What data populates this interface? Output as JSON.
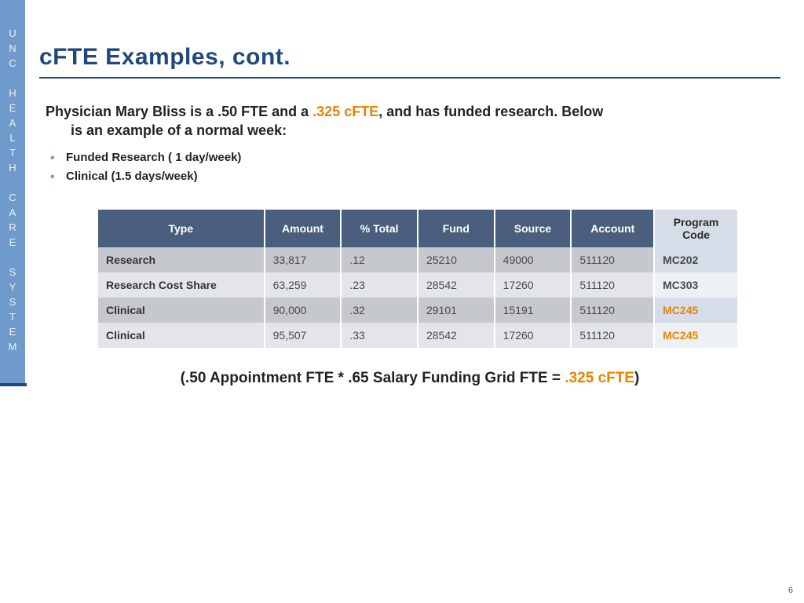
{
  "sidebar": {
    "text": "UNC HEALTH CARE SYSTEM"
  },
  "title": "cFTE Examples, cont.",
  "intro": {
    "pre": "Physician Mary Bliss is a .50 FTE and a ",
    "highlight": ".325 cFTE",
    "post": ", and has funded research.  Below",
    "line2": "is an example of a normal week:"
  },
  "bullets": [
    "Funded Research ( 1 day/week)",
    "Clinical (1.5 days/week)"
  ],
  "table": {
    "columns": [
      "Type",
      "Amount",
      "% Total",
      "Fund",
      "Source",
      "Account",
      "Program Code"
    ],
    "col_widths": [
      "26%",
      "12%",
      "12%",
      "12%",
      "12%",
      "13%",
      "13%"
    ],
    "header_bg_main": "#4a5f7d",
    "header_bg_last": "#d6dde8",
    "rowA_bg": "#c5c8cc",
    "rowA_last_bg": "#d6dde8",
    "rowB_bg": "#e3e5e8",
    "rowB_last_bg": "#edf0f5",
    "highlight_color": "#e98300",
    "rows": [
      {
        "cells": [
          "Research",
          "33,817",
          ".12",
          "25210",
          "49000",
          "511120",
          "MC202"
        ],
        "program_highlight": false,
        "stripe": "A"
      },
      {
        "cells": [
          "Research Cost Share",
          "63,259",
          ".23",
          "28542",
          "17260",
          "511120",
          "MC303"
        ],
        "program_highlight": false,
        "stripe": "B"
      },
      {
        "cells": [
          "Clinical",
          "90,000",
          ".32",
          "29101",
          "15191",
          "511120",
          "MC245"
        ],
        "program_highlight": true,
        "stripe": "A"
      },
      {
        "cells": [
          "Clinical",
          "95,507",
          ".33",
          "28542",
          "17260",
          "511120",
          "MC245"
        ],
        "program_highlight": true,
        "stripe": "B"
      }
    ]
  },
  "formula": {
    "open": "(",
    "body": ".50 Appointment FTE * .65 Salary Funding Grid FTE = ",
    "highlight": ".325 cFTE",
    "close": ")"
  },
  "page_number": "6",
  "colors": {
    "title": "#1f497d",
    "accent": "#e98300",
    "banner": "#6f9acb"
  }
}
